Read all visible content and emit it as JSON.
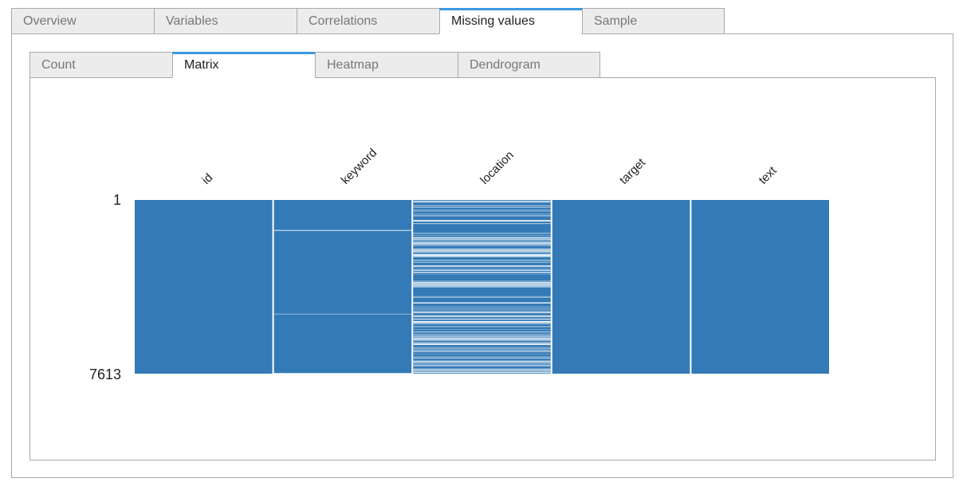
{
  "outer_tabs": [
    {
      "label": "Overview",
      "active": false
    },
    {
      "label": "Variables",
      "active": false
    },
    {
      "label": "Correlations",
      "active": false
    },
    {
      "label": "Missing values",
      "active": true
    },
    {
      "label": "Sample",
      "active": false
    }
  ],
  "inner_tabs": [
    {
      "label": "Count",
      "active": false
    },
    {
      "label": "Matrix",
      "active": true
    },
    {
      "label": "Heatmap",
      "active": false
    },
    {
      "label": "Dendrogram",
      "active": false
    }
  ],
  "colors": {
    "present": "#337ab7",
    "missing": "#ffffff",
    "active_tab_accent": "#3b99e0"
  },
  "chart_data": {
    "type": "heatmap",
    "title": "",
    "columns": [
      "id",
      "keyword",
      "location",
      "target",
      "text"
    ],
    "row_range": [
      1,
      7613
    ],
    "row_labels": [
      "1",
      "7613"
    ],
    "missing_fraction": [
      0,
      0.008,
      0.333,
      0,
      0
    ]
  }
}
